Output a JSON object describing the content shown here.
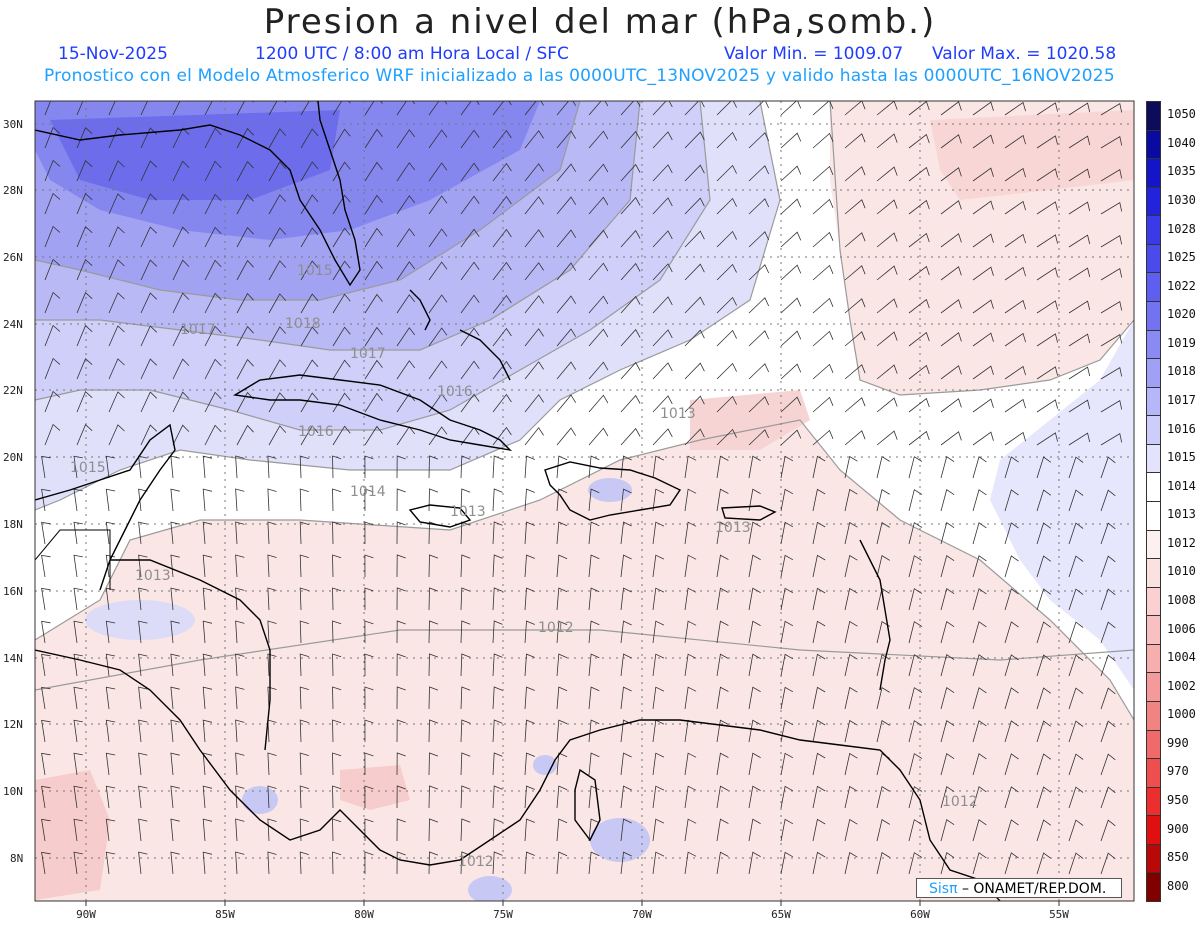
{
  "header": {
    "title": "Presion a nivel del mar (hPa,somb.)",
    "date": "15-Nov-2025",
    "time": "1200 UTC / 8:00 am Hora Local / SFC",
    "min_label": "Valor Min. = 1009.07",
    "max_label": "Valor Max. = 1020.58",
    "model_note": "Pronostico con el Modelo Atmosferico WRF inicializado a las 0000UTC_13NOV2025 y valido hasta las  0000UTC_16NOV2025"
  },
  "axes": {
    "lat_labels": [
      "30N",
      "28N",
      "26N",
      "24N",
      "22N",
      "20N",
      "18N",
      "16N",
      "14N",
      "12N",
      "10N",
      "8N"
    ],
    "lon_labels": [
      "90W",
      "85W",
      "80W",
      "75W",
      "70W",
      "65W",
      "60W",
      "55W"
    ]
  },
  "contour_labels": [
    "1018",
    "1017",
    "1017",
    "1016",
    "1016",
    "1015",
    "1015",
    "1014",
    "1013",
    "1013",
    "1013",
    "1013",
    "1012",
    "1012",
    "1012"
  ],
  "colorbar": {
    "levels": [
      "1050",
      "1040",
      "1035",
      "1030",
      "1028",
      "1025",
      "1022",
      "1020",
      "1019",
      "1018",
      "1017",
      "1016",
      "1015",
      "1014",
      "1013",
      "1012",
      "1010",
      "1008",
      "1006",
      "1004",
      "1002",
      "1000",
      "990",
      "970",
      "950",
      "900",
      "850",
      "800"
    ],
    "colors": [
      "#0c0c5a",
      "#0a0aa0",
      "#1414c8",
      "#2323dc",
      "#3a3ae8",
      "#4b4bec",
      "#5e5ef0",
      "#7373f2",
      "#8a8af5",
      "#a0a0f7",
      "#b6b6fa",
      "#cdcdfc",
      "#e3e3fe",
      "#ffffff",
      "#ffffff",
      "#fdf0f0",
      "#fce1e1",
      "#fad0d0",
      "#f8c0c0",
      "#f6aeae",
      "#f49a9a",
      "#f28383",
      "#f06a6a",
      "#ee4e4e",
      "#ec2e2e",
      "#e01010",
      "#b80808",
      "#800000"
    ]
  },
  "credit": {
    "logo": "Sisπ",
    "text": " – ONAMET/REP.DOM."
  }
}
